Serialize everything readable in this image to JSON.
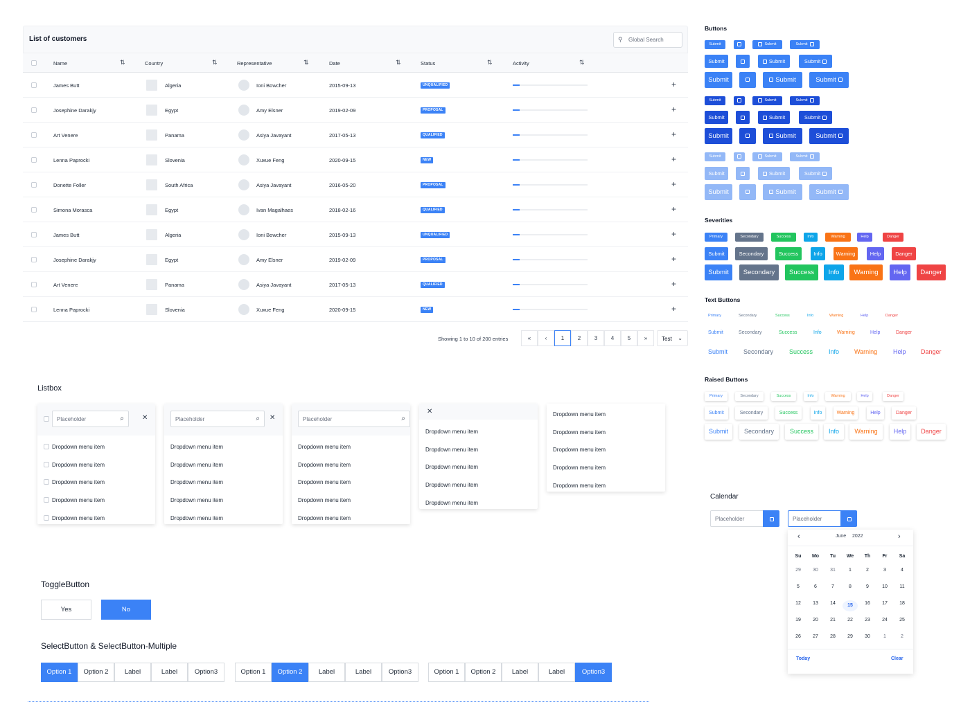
{
  "table": {
    "title": "List of customers",
    "search_placeholder": "Global Search",
    "columns": [
      "Name",
      "Country",
      "Representative",
      "Date",
      "Status",
      "Activity"
    ],
    "rows": [
      {
        "name": "James Butt",
        "country": "Algeria",
        "rep": "Ioni Bowcher",
        "date": "2015-09-13",
        "status": "UNQUALIFIED"
      },
      {
        "name": "Josephine Darakjy",
        "country": "Egypt",
        "rep": "Amy Elsner",
        "date": "2019-02-09",
        "status": "PROPOSAL"
      },
      {
        "name": "Art Venere",
        "country": "Panama",
        "rep": "Asiya Javayant",
        "date": "2017-05-13",
        "status": "QUALIFIED"
      },
      {
        "name": "Lenna Paprocki",
        "country": "Slovenia",
        "rep": "Xuxue Feng",
        "date": "2020-09-15",
        "status": "NEW"
      },
      {
        "name": "Donette Foller",
        "country": "South Africa",
        "rep": "Asiya Javayant",
        "date": "2016-05-20",
        "status": "PROPOSAL"
      },
      {
        "name": "Simona Morasca",
        "country": "Egypt",
        "rep": "Ivan Magalhaes",
        "date": "2018-02-16",
        "status": "QUALIFIED"
      },
      {
        "name": "James Butt",
        "country": "Algeria",
        "rep": "Ioni Bowcher",
        "date": "2015-09-13",
        "status": "UNQUALIFIED"
      },
      {
        "name": "Josephine Darakjy",
        "country": "Egypt",
        "rep": "Amy Elsner",
        "date": "2019-02-09",
        "status": "PROPOSAL"
      },
      {
        "name": "Art Venere",
        "country": "Panama",
        "rep": "Asiya Javayant",
        "date": "2017-05-13",
        "status": "QUALIFIED"
      },
      {
        "name": "Lenna Paprocki",
        "country": "Slovenia",
        "rep": "Xuxue Feng",
        "date": "2020-09-15",
        "status": "NEW"
      }
    ],
    "pagination": {
      "info": "Showing 1 to 10 of 200 entries",
      "first": "«",
      "prev": "‹",
      "next": "›",
      "last": "»",
      "pages": [
        "1",
        "2",
        "3",
        "4",
        "5"
      ],
      "current_page": "1",
      "rows_select": "Test"
    }
  },
  "listbox": {
    "title": "Listbox",
    "placeholder": "Placeholder",
    "item": "Dropdown menu item",
    "close": "✕"
  },
  "toggle": {
    "title": "ToggleButton",
    "yes": "Yes",
    "no": "No"
  },
  "select": {
    "title": "SelectButton & SelectButton-Multiple",
    "options": [
      "Option 1",
      "Option 2",
      "Label",
      "Label",
      "Option3"
    ]
  },
  "buttons": {
    "title": "Buttons",
    "label": "Submit"
  },
  "severities": {
    "title": "Severities",
    "labels": [
      "Primary",
      "Secondary",
      "Success",
      "Info",
      "Warning",
      "Help",
      "Danger"
    ],
    "labels_mid": [
      "Submit",
      "Secondary",
      "Success",
      "Info",
      "Warning",
      "Help",
      "Danger"
    ],
    "colors": [
      "#3b82f6",
      "#64748b",
      "#22c55e",
      "#0ea5e9",
      "#f97316",
      "#6366f1",
      "#ef4444"
    ]
  },
  "text_buttons": {
    "title": "Text Buttons"
  },
  "raised_buttons": {
    "title": "Raised Buttons"
  },
  "calendar": {
    "title": "Calendar",
    "placeholder": "Placeholder",
    "month": "June",
    "year": "2022",
    "weekdays": [
      "Su",
      "Mo",
      "Tu",
      "We",
      "Th",
      "Fr",
      "Sa"
    ],
    "weeks": [
      [
        "29",
        "30",
        "31",
        "1",
        "2",
        "3",
        "4"
      ],
      [
        "5",
        "6",
        "7",
        "8",
        "9",
        "10",
        "11"
      ],
      [
        "12",
        "13",
        "14",
        "15",
        "16",
        "17",
        "18"
      ],
      [
        "19",
        "20",
        "21",
        "22",
        "23",
        "24",
        "25"
      ],
      [
        "26",
        "27",
        "28",
        "29",
        "30",
        "1",
        "2"
      ]
    ],
    "selected": "15",
    "today": "Today",
    "clear": "Clear"
  }
}
